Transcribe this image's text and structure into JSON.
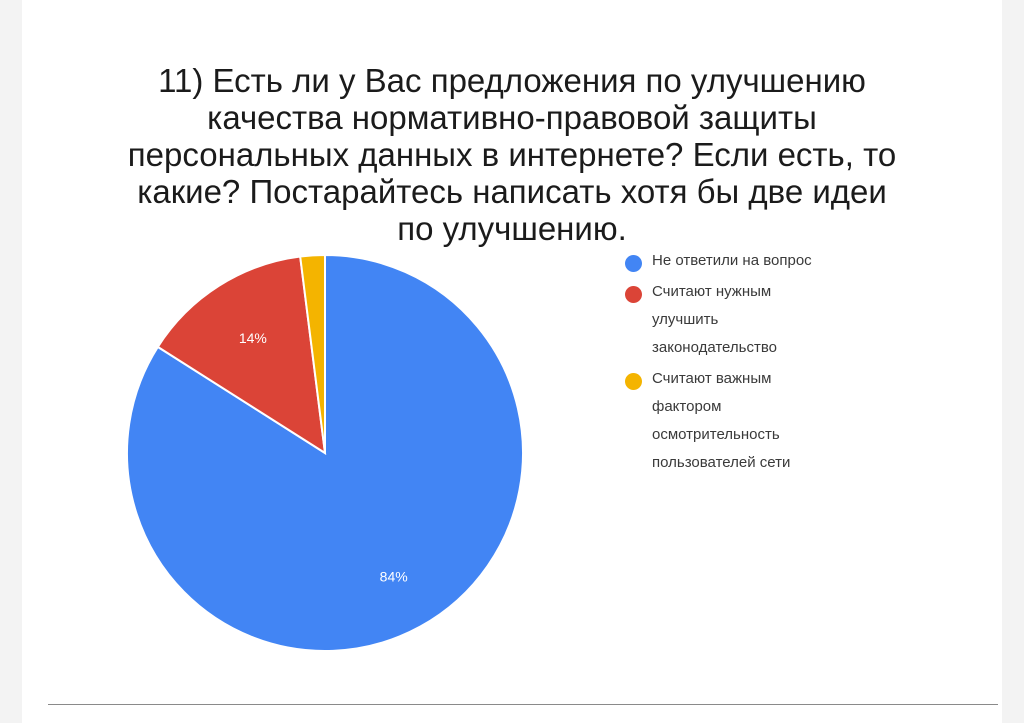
{
  "chart_data": {
    "type": "pie",
    "title_lines": [
      "11) Есть ли у Вас предложения по улучшению",
      "качества нормативно-правовой защиты",
      "персональных данных в интернете? Если есть, то",
      "какие? Постарайтесь написать хотя бы две идеи",
      "по улучшению."
    ],
    "slices": [
      {
        "label_lines": [
          "Не ответили на вопрос"
        ],
        "value": 84,
        "data_label": "84%",
        "color": "#4285f4"
      },
      {
        "label_lines": [
          "Считают нужным",
          "улучшить",
          "законодательство"
        ],
        "value": 14,
        "data_label": "14%",
        "color": "#db4437"
      },
      {
        "label_lines": [
          "Считают важным",
          "фактором",
          "осмотрительность",
          "пользователей сети"
        ],
        "value": 2,
        "data_label": "",
        "color": "#f4b400"
      }
    ],
    "legend_position": "right"
  }
}
